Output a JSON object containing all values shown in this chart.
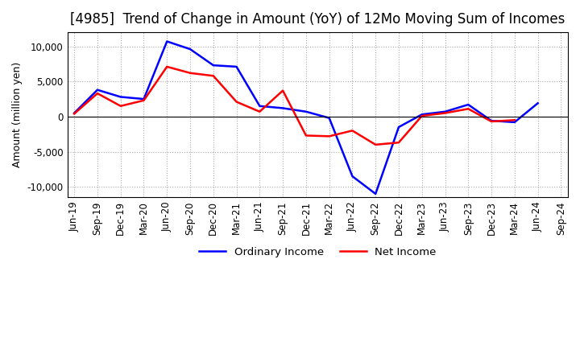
{
  "title": "[4985]  Trend of Change in Amount (YoY) of 12Mo Moving Sum of Incomes",
  "ylabel": "Amount (million yen)",
  "ylim": [
    -11500,
    12000
  ],
  "yticks": [
    -10000,
    -5000,
    0,
    5000,
    10000
  ],
  "x_labels": [
    "Jun-19",
    "Sep-19",
    "Dec-19",
    "Mar-20",
    "Jun-20",
    "Sep-20",
    "Dec-20",
    "Mar-21",
    "Jun-21",
    "Sep-21",
    "Dec-21",
    "Mar-22",
    "Jun-22",
    "Sep-22",
    "Dec-22",
    "Mar-23",
    "Jun-23",
    "Sep-23",
    "Dec-23",
    "Mar-24",
    "Jun-24",
    "Sep-24"
  ],
  "ordinary_income": [
    500,
    3800,
    2800,
    2500,
    10700,
    9600,
    7300,
    7100,
    1500,
    1200,
    700,
    -200,
    -8500,
    -11000,
    -1500,
    300,
    700,
    1700,
    -600,
    -800,
    1900,
    null
  ],
  "net_income": [
    400,
    3300,
    1500,
    2300,
    7100,
    6200,
    5800,
    2100,
    700,
    3700,
    -2700,
    -2800,
    -2000,
    -4000,
    -3700,
    100,
    500,
    1100,
    -700,
    -500,
    null,
    null
  ],
  "ordinary_color": "#0000ff",
  "net_color": "#ff0000",
  "grid_color": "#aaaaaa",
  "background_color": "#ffffff",
  "title_fontsize": 12,
  "label_fontsize": 9,
  "tick_fontsize": 8.5
}
